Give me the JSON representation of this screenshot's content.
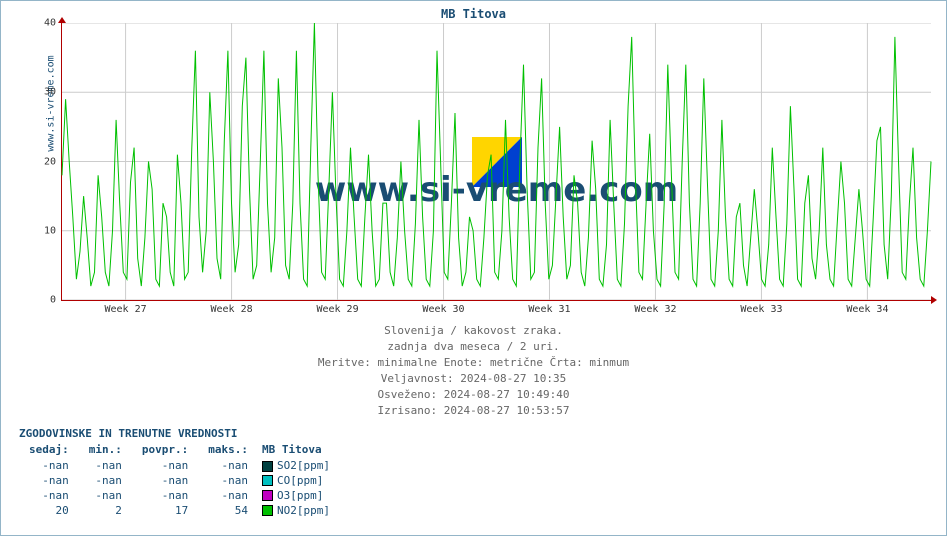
{
  "title": "MB Titova",
  "vlabel": "www.si-vreme.com",
  "watermark_text": "www.si-vreme.com",
  "watermark_logo_colors": {
    "top_left": "#ffd500",
    "bottom_right": "#0040d0",
    "top_right": "#7bd0f0"
  },
  "axis_color": "#b00000",
  "grid_color": "#cccccc",
  "background_color": "#ffffff",
  "border_color": "#94b5c8",
  "text_color_heading": "#1a4d73",
  "text_color_caption": "#666666",
  "plot": {
    "ylim": [
      0,
      40
    ],
    "yticks": [
      0,
      10,
      20,
      30,
      40
    ],
    "xticks": [
      "Week 27",
      "Week 28",
      "Week 29",
      "Week 30",
      "Week 31",
      "Week 32",
      "Week 33",
      "Week 34"
    ],
    "series": {
      "type": "line",
      "color": "#00c000",
      "stroke_width": 1,
      "values": [
        18,
        29,
        20,
        12,
        3,
        7,
        15,
        9,
        2,
        4,
        18,
        12,
        4,
        2,
        10,
        26,
        14,
        4,
        3,
        17,
        22,
        6,
        2,
        9,
        20,
        16,
        3,
        2,
        14,
        12,
        4,
        2,
        21,
        14,
        3,
        4,
        22,
        36,
        12,
        4,
        10,
        30,
        20,
        6,
        3,
        23,
        36,
        14,
        4,
        8,
        28,
        35,
        16,
        3,
        5,
        20,
        36,
        14,
        4,
        9,
        32,
        22,
        5,
        3,
        14,
        36,
        14,
        3,
        2,
        22,
        40,
        18,
        4,
        3,
        16,
        30,
        15,
        3,
        2,
        10,
        22,
        12,
        3,
        2,
        12,
        21,
        10,
        2,
        3,
        14,
        14,
        4,
        2,
        9,
        20,
        10,
        3,
        2,
        11,
        26,
        12,
        3,
        2,
        10,
        36,
        20,
        4,
        3,
        14,
        27,
        9,
        2,
        4,
        12,
        10,
        3,
        2,
        9,
        18,
        21,
        4,
        3,
        10,
        26,
        12,
        3,
        2,
        20,
        34,
        16,
        3,
        4,
        22,
        32,
        14,
        3,
        5,
        15,
        25,
        12,
        3,
        5,
        18,
        14,
        4,
        2,
        9,
        23,
        16,
        3,
        2,
        8,
        26,
        14,
        3,
        2,
        11,
        28,
        38,
        18,
        4,
        3,
        14,
        24,
        10,
        3,
        2,
        14,
        34,
        18,
        4,
        3,
        20,
        34,
        14,
        3,
        2,
        14,
        32,
        17,
        3,
        2,
        10,
        26,
        12,
        3,
        2,
        12,
        14,
        5,
        2,
        9,
        16,
        10,
        3,
        2,
        8,
        22,
        12,
        3,
        2,
        11,
        28,
        16,
        3,
        2,
        14,
        18,
        6,
        3,
        10,
        22,
        8,
        3,
        2,
        11,
        20,
        14,
        3,
        2,
        9,
        16,
        10,
        3,
        2,
        12,
        23,
        25,
        8,
        3,
        15,
        38,
        20,
        4,
        3,
        14,
        22,
        9,
        3,
        2,
        10,
        20
      ]
    }
  },
  "caption": {
    "line1": "Slovenija / kakovost zraka.",
    "line2": "zadnja dva meseca / 2 uri.",
    "line3": "Meritve: minimalne  Enote: metrične  Črta: minmum",
    "line4": "Veljavnost: 2024-08-27 10:35",
    "line5": "Osveženo: 2024-08-27 10:49:40",
    "line6": "Izrisano: 2024-08-27 10:53:57"
  },
  "legend": {
    "header": "ZGODOVINSKE IN TRENUTNE VREDNOSTI",
    "columns": [
      "sedaj:",
      "min.:",
      "povpr.:",
      "maks.:"
    ],
    "series_header": "MB Titova",
    "rows": [
      {
        "sedaj": "-nan",
        "min": "-nan",
        "povpr": "-nan",
        "maks": "-nan",
        "color": "#004040",
        "label": "SO2[ppm]"
      },
      {
        "sedaj": "-nan",
        "min": "-nan",
        "povpr": "-nan",
        "maks": "-nan",
        "color": "#00c0c0",
        "label": "CO[ppm]"
      },
      {
        "sedaj": "-nan",
        "min": "-nan",
        "povpr": "-nan",
        "maks": "-nan",
        "color": "#c000c0",
        "label": "O3[ppm]"
      },
      {
        "sedaj": "20",
        "min": "2",
        "povpr": "17",
        "maks": "54",
        "color": "#00c000",
        "label": "NO2[ppm]"
      }
    ]
  }
}
